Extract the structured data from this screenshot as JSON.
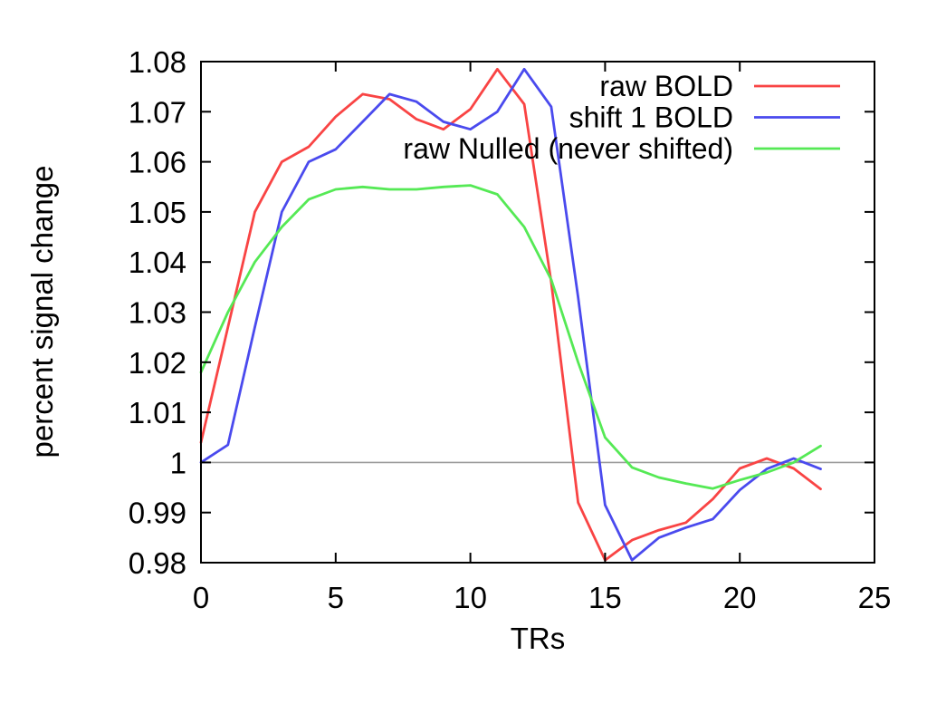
{
  "figure": {
    "background": "#ffffff",
    "axis_color": "#000000",
    "text_color": "#000000",
    "reference_line_color": "#9a9a9a"
  },
  "chart_data": {
    "type": "line",
    "title": "",
    "xlabel": "TRs",
    "ylabel": "percent signal change",
    "xlim": [
      0,
      25
    ],
    "ylim": [
      0.98,
      1.08
    ],
    "x_ticks": [
      0,
      5,
      10,
      15,
      20,
      25
    ],
    "x_tick_labels": [
      "0",
      "5",
      "10",
      "15",
      "20",
      "25"
    ],
    "y_ticks": [
      0.98,
      0.99,
      1.0,
      1.01,
      1.02,
      1.03,
      1.04,
      1.05,
      1.06,
      1.07,
      1.08
    ],
    "y_tick_labels": [
      "0.98",
      "0.99",
      "1",
      "1.01",
      "1.02",
      "1.03",
      "1.04",
      "1.05",
      "1.06",
      "1.07",
      "1.08"
    ],
    "grid": false,
    "legend_position": "top-right",
    "reference_line_y": 1.0,
    "x": [
      0,
      1,
      2,
      3,
      4,
      5,
      6,
      7,
      8,
      9,
      10,
      11,
      12,
      13,
      14,
      15,
      16,
      17,
      18,
      19,
      20,
      21,
      22,
      23
    ],
    "series": [
      {
        "name": "raw BOLD",
        "color": "#f94444",
        "values": [
          1.004,
          1.027,
          1.05,
          1.06,
          1.063,
          1.069,
          1.0735,
          1.0725,
          1.0685,
          1.0665,
          1.0705,
          1.0785,
          1.0715,
          1.036,
          0.992,
          0.9805,
          0.9845,
          0.9865,
          0.988,
          0.9927,
          0.9988,
          1.0008,
          0.9988,
          0.9947
        ]
      },
      {
        "name": "shift 1 BOLD",
        "color": "#4a4aee",
        "values": [
          1.0,
          1.0035,
          1.027,
          1.05,
          1.06,
          1.0625,
          1.068,
          1.0735,
          1.072,
          1.068,
          1.0665,
          1.07,
          1.0785,
          1.071,
          1.033,
          0.9915,
          0.9805,
          0.985,
          0.987,
          0.9887,
          0.9945,
          0.9987,
          1.0008,
          0.9987
        ]
      },
      {
        "name": "raw Nulled (never shifted)",
        "color": "#55e955",
        "values": [
          1.018,
          1.03,
          1.04,
          1.047,
          1.0525,
          1.0545,
          1.055,
          1.0545,
          1.0545,
          1.055,
          1.0553,
          1.0535,
          1.047,
          1.0365,
          1.02,
          1.005,
          0.999,
          0.997,
          0.9958,
          0.9948,
          0.9965,
          0.998,
          1.0,
          1.0033
        ]
      }
    ]
  }
}
